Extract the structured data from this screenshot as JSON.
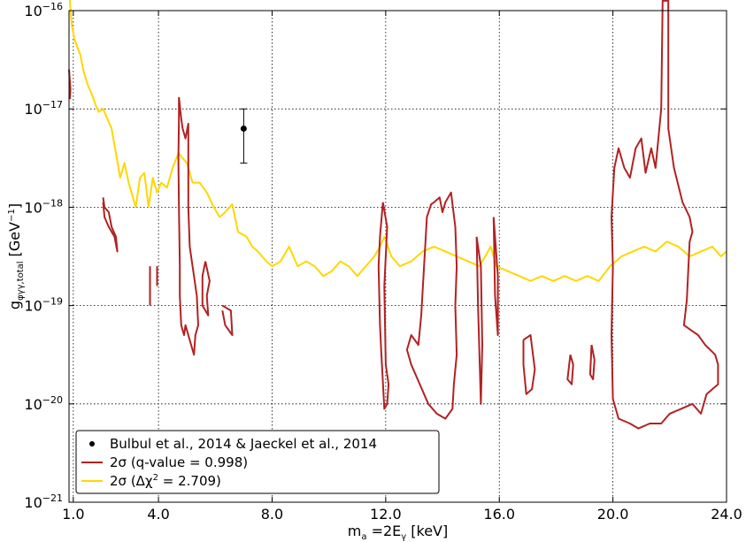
{
  "chart_data": {
    "type": "line",
    "xlabel": "m_a = 2E_γ [keV]",
    "ylabel": "g_φγγ,total [GeV⁻¹]",
    "xlim": [
      0.85,
      24.0
    ],
    "ylim_exponent": [
      -21,
      -16
    ],
    "yscale": "log",
    "grid": true,
    "legend_placement": "lower-left",
    "x_tick_labels": [
      "1.0",
      "4.0",
      "8.0",
      "12.0",
      "16.0",
      "20.0",
      "24.0"
    ],
    "x_ticks": [
      1.0,
      4.0,
      8.0,
      12.0,
      16.0,
      20.0,
      24.0
    ],
    "y_tick_exponents": [
      -16,
      -17,
      -18,
      -19,
      -20,
      -21
    ],
    "y_tick_base": "10",
    "legend": [
      {
        "label": "Bulbul et al., 2014 & Jaeckel et al., 2014",
        "marker": "point",
        "color": "#000000"
      },
      {
        "label_prefix": "2σ (q-value",
        "label_eq": " = ",
        "label_value": "0.998",
        "label_suffix": ")",
        "color": "#b22222"
      },
      {
        "label_prefix": "2σ (Δχ",
        "label_sup": "2",
        "label_eq": " = ",
        "label_value": "2.709",
        "label_suffix": ")",
        "color": "#ffd700"
      }
    ],
    "series": [
      {
        "color": "#ffd700",
        "style": "line",
        "points": [
          [
            0.85,
            -15.8
          ],
          [
            0.95,
            -16.15
          ],
          [
            1.05,
            -16.3
          ],
          [
            1.25,
            -16.45
          ],
          [
            1.35,
            -16.6
          ],
          [
            1.5,
            -16.75
          ],
          [
            1.65,
            -16.85
          ],
          [
            1.8,
            -16.97
          ],
          [
            1.9,
            -17.03
          ],
          [
            2.05,
            -17.0
          ],
          [
            2.2,
            -17.1
          ],
          [
            2.35,
            -17.2
          ],
          [
            2.5,
            -17.45
          ],
          [
            2.65,
            -17.7
          ],
          [
            2.8,
            -17.55
          ],
          [
            2.95,
            -17.75
          ],
          [
            3.05,
            -17.85
          ],
          [
            3.2,
            -18.0
          ],
          [
            3.35,
            -17.7
          ],
          [
            3.5,
            -17.65
          ],
          [
            3.65,
            -18.0
          ],
          [
            3.8,
            -17.7
          ],
          [
            3.95,
            -17.85
          ],
          [
            4.1,
            -17.75
          ],
          [
            4.3,
            -17.8
          ],
          [
            4.5,
            -17.6
          ],
          [
            4.7,
            -17.45
          ],
          [
            4.85,
            -17.5
          ],
          [
            5.0,
            -17.55
          ],
          [
            5.2,
            -17.75
          ],
          [
            5.45,
            -17.75
          ],
          [
            5.7,
            -17.85
          ],
          [
            5.95,
            -18.0
          ],
          [
            6.15,
            -18.1
          ],
          [
            6.35,
            -18.05
          ],
          [
            6.6,
            -17.97
          ],
          [
            6.8,
            -18.25
          ],
          [
            7.1,
            -18.3
          ],
          [
            7.3,
            -18.4
          ],
          [
            7.5,
            -18.45
          ],
          [
            7.8,
            -18.55
          ],
          [
            8.0,
            -18.6
          ],
          [
            8.3,
            -18.55
          ],
          [
            8.6,
            -18.4
          ],
          [
            8.9,
            -18.6
          ],
          [
            9.2,
            -18.55
          ],
          [
            9.5,
            -18.6
          ],
          [
            9.8,
            -18.7
          ],
          [
            10.1,
            -18.65
          ],
          [
            10.4,
            -18.55
          ],
          [
            10.7,
            -18.6
          ],
          [
            11.0,
            -18.7
          ],
          [
            11.3,
            -18.6
          ],
          [
            11.6,
            -18.5
          ],
          [
            11.8,
            -18.4
          ],
          [
            11.95,
            -18.3
          ],
          [
            12.2,
            -18.5
          ],
          [
            12.5,
            -18.6
          ],
          [
            12.9,
            -18.55
          ],
          [
            13.3,
            -18.45
          ],
          [
            13.7,
            -18.4
          ],
          [
            14.1,
            -18.45
          ],
          [
            14.5,
            -18.5
          ],
          [
            14.9,
            -18.55
          ],
          [
            15.3,
            -18.6
          ],
          [
            15.5,
            -18.5
          ],
          [
            15.7,
            -18.4
          ],
          [
            15.9,
            -18.6
          ],
          [
            16.3,
            -18.65
          ],
          [
            16.7,
            -18.7
          ],
          [
            17.1,
            -18.75
          ],
          [
            17.5,
            -18.7
          ],
          [
            17.9,
            -18.75
          ],
          [
            18.3,
            -18.7
          ],
          [
            18.7,
            -18.75
          ],
          [
            19.1,
            -18.7
          ],
          [
            19.5,
            -18.75
          ],
          [
            19.9,
            -18.6
          ],
          [
            20.3,
            -18.5
          ],
          [
            20.7,
            -18.45
          ],
          [
            21.1,
            -18.4
          ],
          [
            21.5,
            -18.45
          ],
          [
            21.9,
            -18.35
          ],
          [
            22.3,
            -18.4
          ],
          [
            22.7,
            -18.5
          ],
          [
            23.1,
            -18.45
          ],
          [
            23.5,
            -18.4
          ],
          [
            23.8,
            -18.5
          ],
          [
            24.0,
            -18.45
          ]
        ]
      },
      {
        "color": "#b22222",
        "style": "line",
        "points": [
          [
            0.85,
            -16.6
          ],
          [
            0.9,
            -16.8
          ],
          [
            0.88,
            -16.9
          ]
        ]
      },
      {
        "color": "#b22222",
        "style": "line",
        "points": [
          [
            2.05,
            -17.9
          ],
          [
            2.1,
            -18.0
          ],
          [
            2.25,
            -18.05
          ],
          [
            2.35,
            -18.2
          ],
          [
            2.5,
            -18.3
          ],
          [
            2.55,
            -18.45
          ],
          [
            2.45,
            -18.3
          ],
          [
            2.25,
            -18.2
          ],
          [
            2.1,
            -18.1
          ],
          [
            2.05,
            -17.95
          ]
        ]
      },
      {
        "color": "#b22222",
        "style": "line",
        "points": [
          [
            3.7,
            -18.6
          ],
          [
            3.7,
            -19.0
          ]
        ]
      },
      {
        "color": "#b22222",
        "style": "line",
        "points": [
          [
            3.95,
            -18.6
          ],
          [
            3.95,
            -18.8
          ]
        ]
      },
      {
        "color": "#b22222",
        "style": "line",
        "points": [
          [
            4.72,
            -16.88
          ],
          [
            4.8,
            -17.1
          ],
          [
            4.85,
            -17.2
          ],
          [
            4.95,
            -17.3
          ],
          [
            5.05,
            -17.15
          ],
          [
            5.05,
            -18.0
          ],
          [
            5.1,
            -18.4
          ],
          [
            5.2,
            -18.6
          ],
          [
            5.35,
            -18.9
          ],
          [
            5.4,
            -19.2
          ],
          [
            5.3,
            -19.3
          ],
          [
            5.25,
            -19.5
          ],
          [
            5.15,
            -19.4
          ],
          [
            5.05,
            -19.3
          ],
          [
            4.95,
            -19.2
          ],
          [
            4.9,
            -19.3
          ],
          [
            4.8,
            -19.2
          ],
          [
            4.75,
            -18.9
          ],
          [
            4.75,
            -18.6
          ],
          [
            4.72,
            -18.0
          ],
          [
            4.7,
            -17.5
          ],
          [
            4.72,
            -17.1
          ],
          [
            4.72,
            -16.88
          ]
        ]
      },
      {
        "color": "#b22222",
        "style": "line",
        "points": [
          [
            5.65,
            -18.55
          ],
          [
            5.8,
            -18.75
          ],
          [
            5.7,
            -18.9
          ],
          [
            5.75,
            -19.1
          ],
          [
            5.55,
            -19.0
          ],
          [
            5.55,
            -18.7
          ],
          [
            5.65,
            -18.55
          ]
        ]
      },
      {
        "color": "#b22222",
        "style": "line",
        "points": [
          [
            6.25,
            -19.0
          ],
          [
            6.55,
            -19.05
          ],
          [
            6.6,
            -19.3
          ],
          [
            6.35,
            -19.2
          ],
          [
            6.25,
            -19.05
          ]
        ]
      },
      {
        "color": "#b22222",
        "style": "line",
        "points": [
          [
            11.9,
            -17.95
          ],
          [
            12.05,
            -18.2
          ],
          [
            11.95,
            -18.8
          ],
          [
            12.0,
            -19.6
          ],
          [
            12.1,
            -19.8
          ],
          [
            12.05,
            -20.0
          ],
          [
            11.95,
            -20.05
          ],
          [
            11.85,
            -19.5
          ],
          [
            11.8,
            -19.2
          ],
          [
            11.75,
            -18.6
          ],
          [
            11.8,
            -18.3
          ],
          [
            11.9,
            -17.95
          ]
        ]
      },
      {
        "color": "#b22222",
        "style": "line",
        "points": [
          [
            13.7,
            -17.95
          ],
          [
            13.9,
            -17.9
          ],
          [
            14.0,
            -18.05
          ],
          [
            14.1,
            -17.95
          ],
          [
            14.3,
            -17.85
          ],
          [
            14.45,
            -18.2
          ],
          [
            14.5,
            -18.6
          ],
          [
            14.45,
            -19.0
          ],
          [
            14.5,
            -19.5
          ],
          [
            14.4,
            -19.8
          ],
          [
            14.35,
            -20.05
          ],
          [
            14.1,
            -20.15
          ],
          [
            13.8,
            -20.1
          ],
          [
            13.5,
            -20.0
          ],
          [
            13.2,
            -19.8
          ],
          [
            12.9,
            -19.6
          ],
          [
            12.75,
            -19.45
          ],
          [
            12.9,
            -19.3
          ],
          [
            13.15,
            -19.4
          ],
          [
            13.25,
            -19.1
          ],
          [
            13.35,
            -18.6
          ],
          [
            13.45,
            -18.1
          ],
          [
            13.6,
            -17.97
          ],
          [
            13.7,
            -17.95
          ]
        ]
      },
      {
        "color": "#b22222",
        "style": "line",
        "points": [
          [
            15.2,
            -18.3
          ],
          [
            15.25,
            -19.0
          ],
          [
            15.3,
            -19.5
          ],
          [
            15.35,
            -20.0
          ],
          [
            15.4,
            -19.4
          ],
          [
            15.35,
            -18.6
          ],
          [
            15.2,
            -18.3
          ]
        ]
      },
      {
        "color": "#b22222",
        "style": "line",
        "points": [
          [
            15.8,
            -18.1
          ],
          [
            15.85,
            -18.9
          ],
          [
            15.95,
            -19.3
          ],
          [
            15.95,
            -18.7
          ],
          [
            15.8,
            -18.1
          ]
        ]
      },
      {
        "color": "#b22222",
        "style": "line",
        "points": [
          [
            16.85,
            -19.35
          ],
          [
            17.1,
            -19.3
          ],
          [
            17.25,
            -19.65
          ],
          [
            17.15,
            -19.85
          ],
          [
            16.95,
            -19.9
          ],
          [
            16.85,
            -19.6
          ],
          [
            16.85,
            -19.35
          ]
        ]
      },
      {
        "color": "#b22222",
        "style": "line",
        "points": [
          [
            18.5,
            -19.5
          ],
          [
            18.6,
            -19.6
          ],
          [
            18.55,
            -19.8
          ],
          [
            18.4,
            -19.75
          ],
          [
            18.5,
            -19.5
          ]
        ]
      },
      {
        "color": "#b22222",
        "style": "line",
        "points": [
          [
            19.25,
            -19.4
          ],
          [
            19.35,
            -19.55
          ],
          [
            19.3,
            -19.75
          ],
          [
            19.2,
            -19.7
          ],
          [
            19.25,
            -19.4
          ]
        ]
      },
      {
        "color": "#b22222",
        "style": "line",
        "points": [
          [
            20.05,
            -17.6
          ],
          [
            20.2,
            -17.4
          ],
          [
            20.4,
            -17.6
          ],
          [
            20.6,
            -17.7
          ],
          [
            20.8,
            -17.4
          ],
          [
            21.0,
            -17.3
          ],
          [
            21.15,
            -17.65
          ],
          [
            21.35,
            -17.4
          ],
          [
            21.5,
            -17.6
          ],
          [
            21.7,
            -17.0
          ],
          [
            21.75,
            -15.9
          ],
          [
            21.95,
            -15.9
          ],
          [
            21.95,
            -17.2
          ],
          [
            22.15,
            -17.6
          ],
          [
            22.45,
            -17.95
          ],
          [
            22.7,
            -18.1
          ],
          [
            22.8,
            -18.25
          ],
          [
            22.7,
            -18.35
          ],
          [
            22.6,
            -18.95
          ],
          [
            22.5,
            -19.2
          ],
          [
            22.75,
            -19.25
          ],
          [
            23.0,
            -19.3
          ],
          [
            23.25,
            -19.4
          ],
          [
            23.6,
            -19.5
          ],
          [
            23.7,
            -19.6
          ],
          [
            23.7,
            -19.8
          ],
          [
            23.3,
            -19.9
          ],
          [
            23.1,
            -20.1
          ],
          [
            22.8,
            -20.0
          ],
          [
            22.4,
            -20.05
          ],
          [
            22.0,
            -20.1
          ],
          [
            21.7,
            -20.2
          ],
          [
            21.3,
            -20.2
          ],
          [
            20.9,
            -20.25
          ],
          [
            20.6,
            -20.2
          ],
          [
            20.2,
            -20.15
          ],
          [
            20.0,
            -19.95
          ],
          [
            19.95,
            -19.3
          ],
          [
            20.0,
            -18.6
          ],
          [
            19.95,
            -18.1
          ],
          [
            20.05,
            -17.6
          ]
        ]
      }
    ],
    "errorbar_point": {
      "x": 7.0,
      "y_exp": -17.2,
      "y_low_exp": -17.55,
      "y_high_exp": -17.0,
      "color": "#000000"
    }
  }
}
